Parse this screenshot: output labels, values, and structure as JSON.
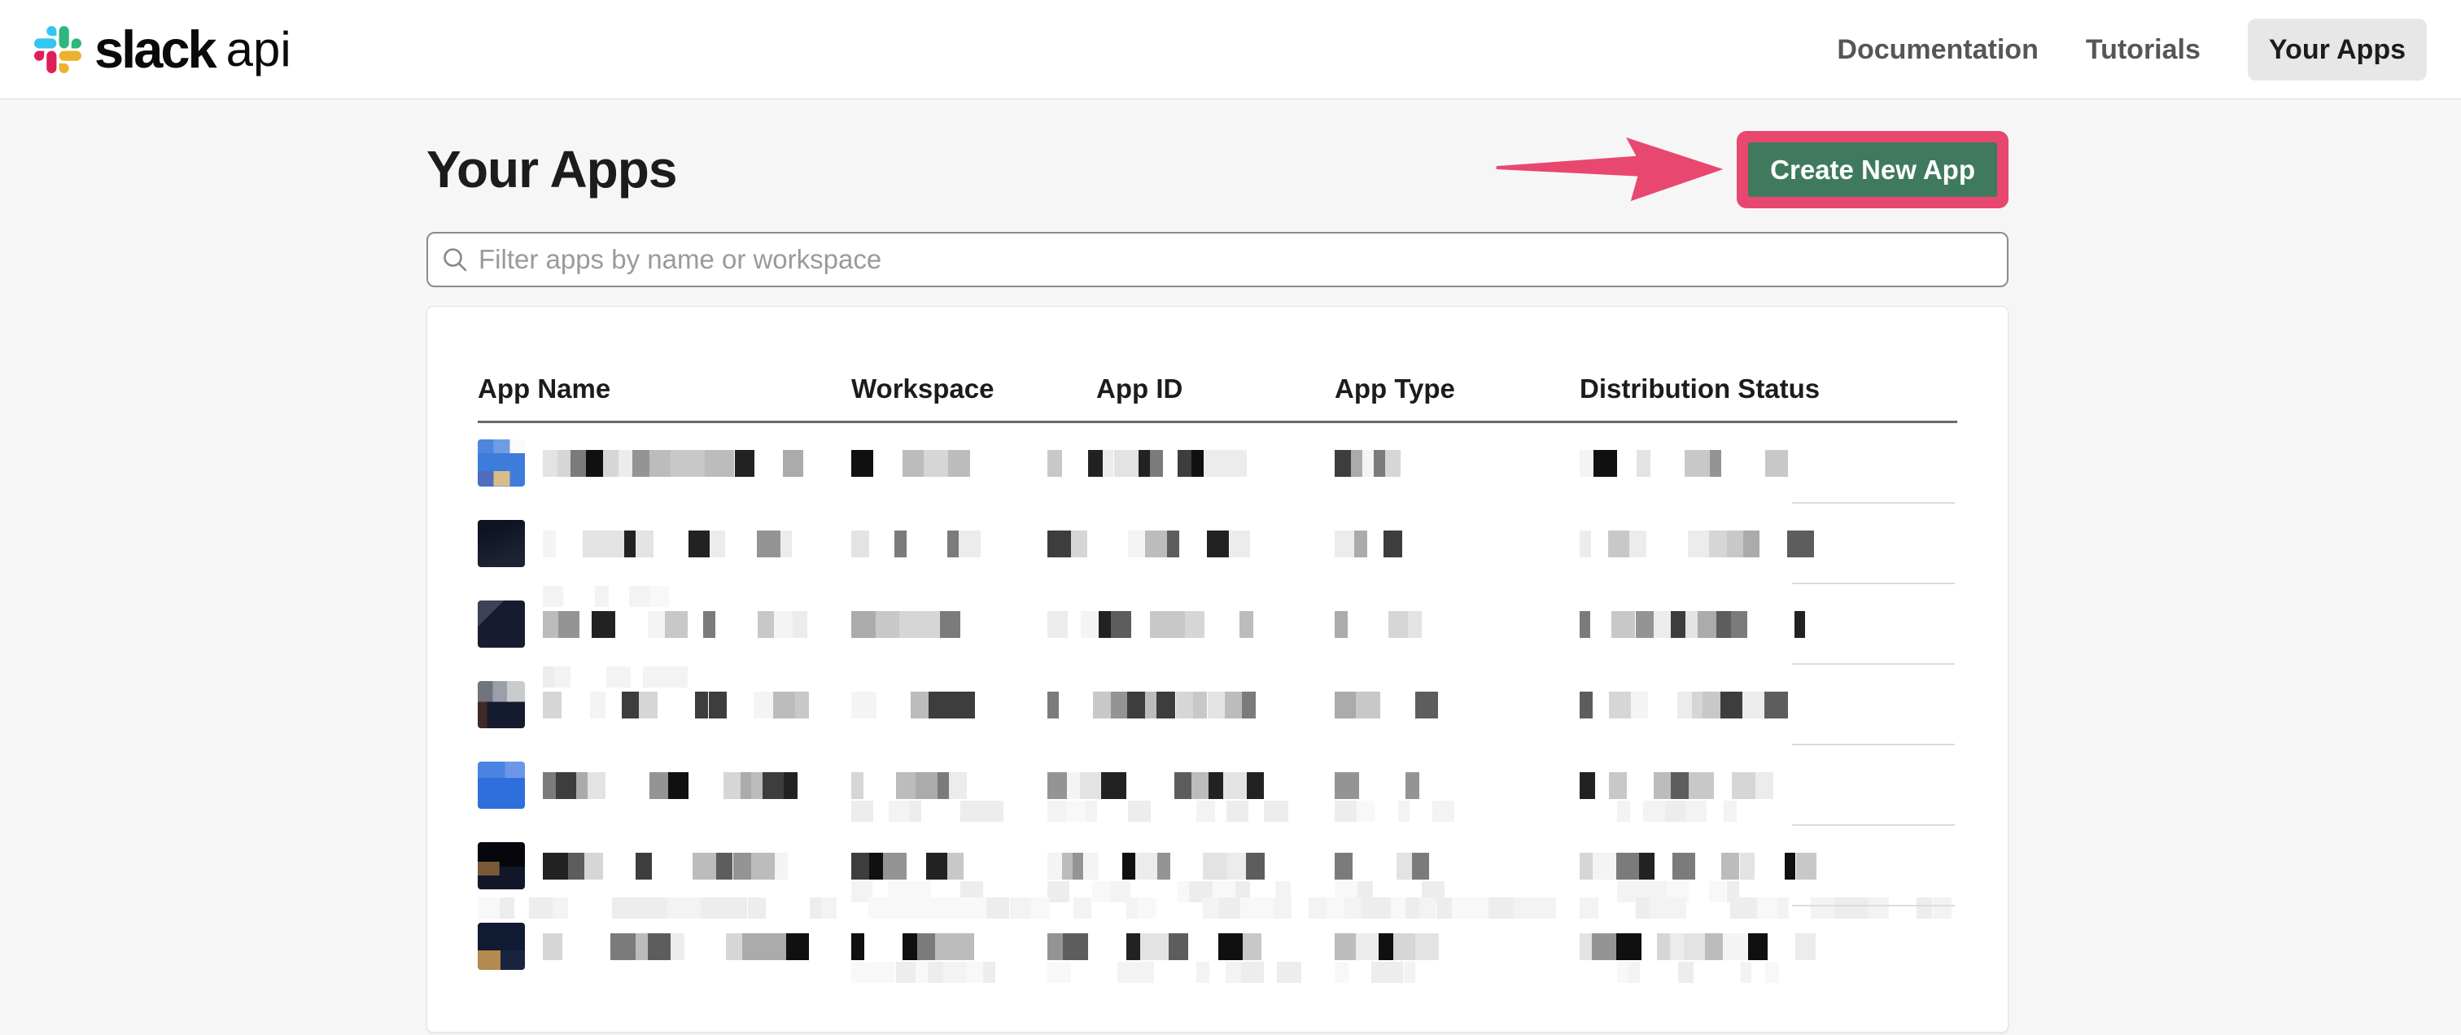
{
  "header": {
    "logo": {
      "brand": "slack",
      "suffix": "api"
    },
    "nav": [
      {
        "label": "Documentation",
        "active": false
      },
      {
        "label": "Tutorials",
        "active": false
      },
      {
        "label": "Your Apps",
        "active": true
      }
    ]
  },
  "main": {
    "title": "Your Apps",
    "create_button_label": "Create New App",
    "filter_placeholder": "Filter apps by name or workspace"
  },
  "table": {
    "columns": [
      "App Name",
      "Workspace",
      "App ID",
      "App Type",
      "Distribution Status"
    ],
    "rows": [
      {
        "content": "redacted",
        "seed": 3,
        "top_line": false,
        "second_line": false,
        "band": false,
        "icon_bg": "linear-gradient(90deg,#4f6cbd 0 34%,#d9bd88 34% 68%,#3d7cdb 68%) 0 100%/100% 32% no-repeat, linear-gradient(90deg,#4c87dd 0 34%,#6f9de4 34% 68%,#fbfbfb 68%) 0 0/100% 30% no-repeat, linear-gradient(#3d7cdb,#3d7cdb)"
      },
      {
        "content": "redacted",
        "seed": 17,
        "top_line": false,
        "second_line": false,
        "band": false,
        "icon_bg": "linear-gradient(160deg,#0e1322 20%,#1d2235 80%)"
      },
      {
        "content": "redacted",
        "seed": 42,
        "top_line": true,
        "second_line": false,
        "band": false,
        "icon_bg": "linear-gradient(135deg,#3c4257 0 28%,#171c30 28%)"
      },
      {
        "content": "redacted",
        "seed": 55,
        "top_line": true,
        "second_line": false,
        "band": false,
        "icon_bg": "linear-gradient(90deg,#70747c 0 32%,#9ba0a8 32% 62%,#c9cbce 62%) 0 0/100% 44% no-repeat, linear-gradient(90deg,#402a27 0 20%,#151b2f 20%)"
      },
      {
        "content": "redacted",
        "seed": 71,
        "top_line": false,
        "second_line": true,
        "band": false,
        "icon_bg": "linear-gradient(90deg,#4a83e2 0 58%,#6a97e8 58%) 0 0/100% 35% no-repeat, linear-gradient(#2f6fdd,#2f6fdd)"
      },
      {
        "content": "redacted",
        "seed": 88,
        "top_line": false,
        "second_line": true,
        "band": true,
        "icon_bg": "linear-gradient(#7a5a36,#7a5a36) 0 60%/46% 30% no-repeat, linear-gradient(180deg,#05070d 0 52%,#12172a 52%)"
      },
      {
        "content": "redacted",
        "seed": 104,
        "top_line": false,
        "second_line": true,
        "band": false,
        "icon_bg": "linear-gradient(90deg,#b38a4f 0 48%,#1a2340 48%) 0 100%/100% 42% no-repeat, linear-gradient(#111a33,#111a33)"
      }
    ]
  },
  "colors": {
    "accent_pink": "#E8476F",
    "button_green": "#3F7A5E",
    "page_bg": "#F6F6F6",
    "slack_blue": "#36C5F0",
    "slack_green": "#2EB67D",
    "slack_red": "#E01E5A",
    "slack_yellow": "#ECB22E"
  },
  "icons": {
    "slack_logo": "slack-hash-mark",
    "search": "magnifier-outline",
    "annotation_arrow": "right-arrow"
  }
}
